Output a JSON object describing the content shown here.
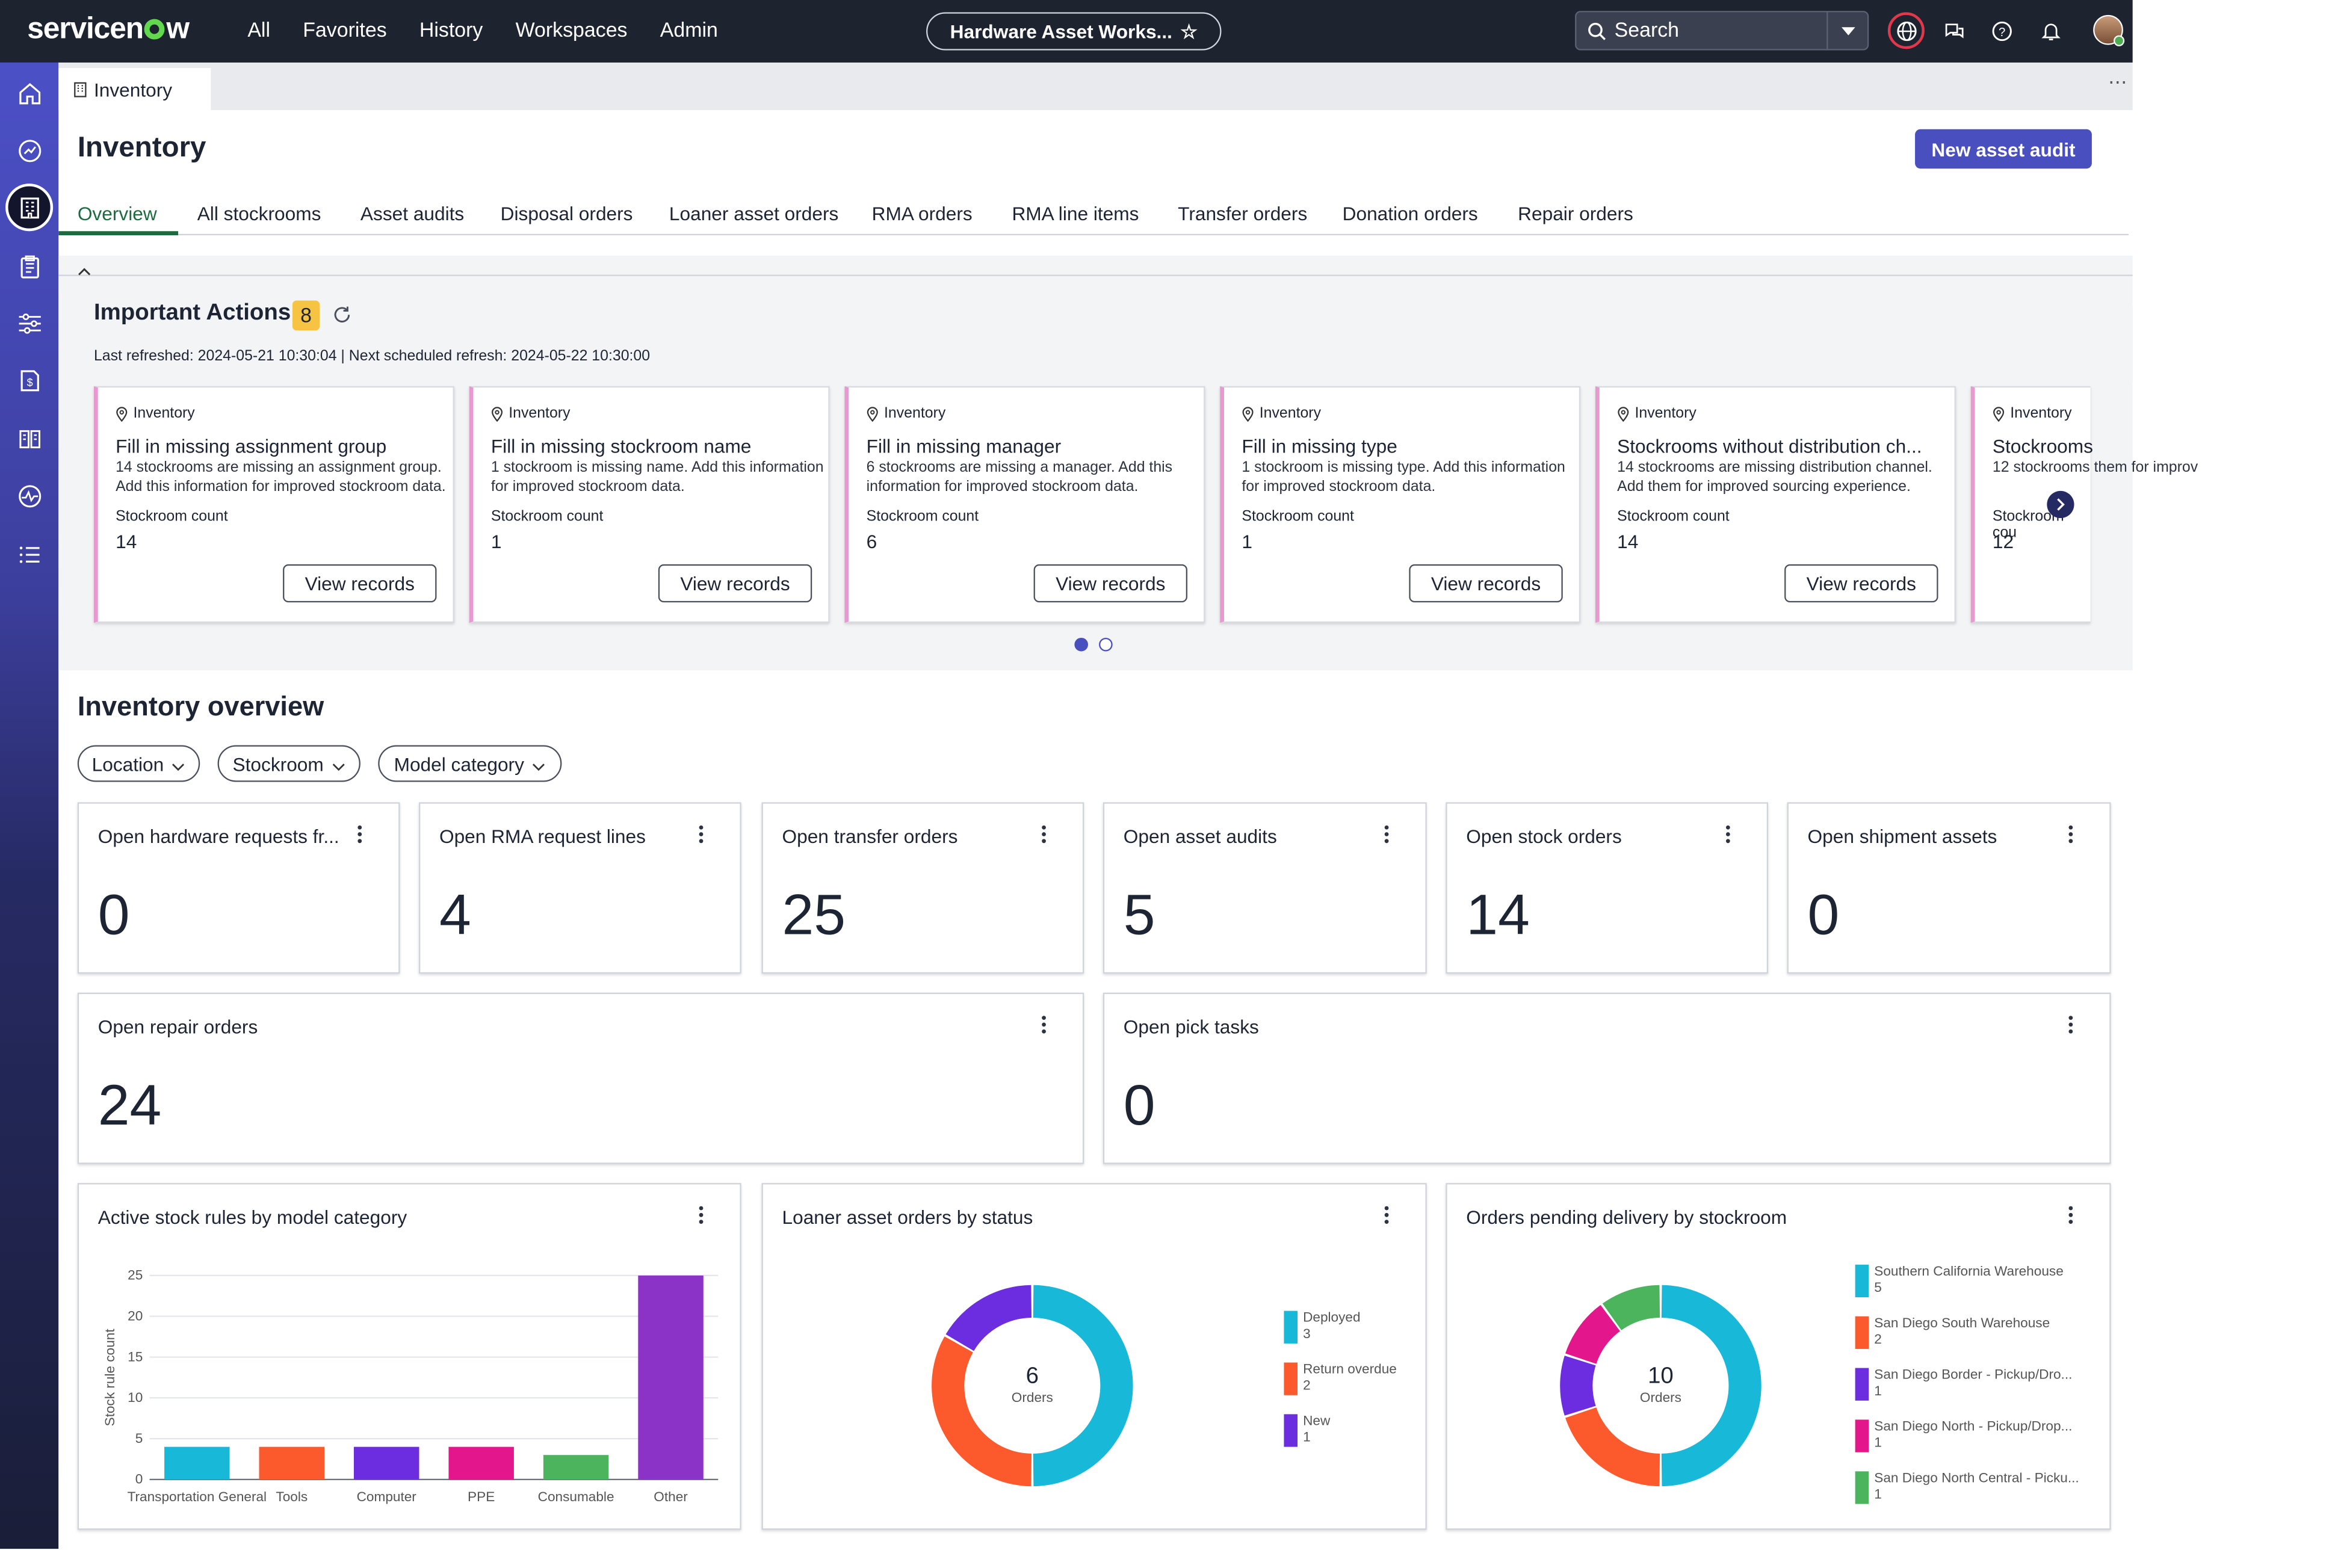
{
  "header": {
    "logo": "servicenow",
    "nav": [
      "All",
      "Favorites",
      "History",
      "Workspaces",
      "Admin"
    ],
    "workspace_pill": "Hardware Asset Works...",
    "search_placeholder": "Search"
  },
  "tab": {
    "label": "Inventory"
  },
  "page": {
    "title": "Inventory",
    "primary_button": "New asset audit"
  },
  "subnav": [
    "Overview",
    "All stockrooms",
    "Asset audits",
    "Disposal orders",
    "Loaner asset orders",
    "RMA orders",
    "RMA line items",
    "Transfer orders",
    "Donation orders",
    "Repair orders"
  ],
  "important_actions": {
    "title": "Important Actions",
    "count": "8",
    "meta": "Last refreshed: 2024-05-21 10:30:04 | Next scheduled refresh: 2024-05-22 10:30:00",
    "cards": [
      {
        "source": "Inventory",
        "title": "Fill in missing assignment group",
        "desc": "14 stockrooms are missing an assignment group. Add this information for improved stockroom data.",
        "count_label": "Stockroom count",
        "count": "14",
        "button": "View records"
      },
      {
        "source": "Inventory",
        "title": "Fill in missing stockroom name",
        "desc": "1 stockroom is missing name. Add this information for improved stockroom data.",
        "count_label": "Stockroom count",
        "count": "1",
        "button": "View records"
      },
      {
        "source": "Inventory",
        "title": "Fill in missing manager",
        "desc": "6 stockrooms are missing a manager. Add this information for improved stockroom data.",
        "count_label": "Stockroom count",
        "count": "6",
        "button": "View records"
      },
      {
        "source": "Inventory",
        "title": "Fill in missing type",
        "desc": "1 stockroom is missing type. Add this information for improved stockroom data.",
        "count_label": "Stockroom count",
        "count": "1",
        "button": "View records"
      },
      {
        "source": "Inventory",
        "title": "Stockrooms without distribution ch...",
        "desc": "14 stockrooms are missing distribution channel. Add them for improved sourcing experience.",
        "count_label": "Stockroom count",
        "count": "14",
        "button": "View records"
      },
      {
        "source": "Inventory",
        "title": "Stockrooms",
        "desc": "12 stockrooms them for improv",
        "count_label": "Stockroom cou",
        "count": "12",
        "button": ""
      }
    ]
  },
  "overview": {
    "title": "Inventory overview",
    "filters": [
      "Location",
      "Stockroom",
      "Model category"
    ],
    "tiles": [
      {
        "label": "Open hardware requests fr...",
        "value": "0"
      },
      {
        "label": "Open RMA request lines",
        "value": "4"
      },
      {
        "label": "Open transfer orders",
        "value": "25"
      },
      {
        "label": "Open asset audits",
        "value": "5"
      },
      {
        "label": "Open stock orders",
        "value": "14"
      },
      {
        "label": "Open shipment assets",
        "value": "0"
      },
      {
        "label": "Open repair orders",
        "value": "24"
      },
      {
        "label": "Open pick tasks",
        "value": "0"
      }
    ],
    "charts_titles": [
      "Active stock rules by model category",
      "Loaner asset orders by status",
      "Orders pending delivery by stockroom"
    ]
  },
  "chart_data": [
    {
      "type": "bar",
      "title": "Active stock rules by model category",
      "ylabel": "Stock rule count",
      "ylim": [
        0,
        25
      ],
      "yticks": [
        0,
        5,
        10,
        15,
        20,
        25
      ],
      "categories": [
        "Transportation General",
        "Tools",
        "Computer",
        "PPE",
        "Consumable",
        "Other"
      ],
      "values": [
        4,
        4,
        4,
        4,
        3,
        25
      ],
      "colors": [
        "#17b8d8",
        "#fc5a2d",
        "#6c2de0",
        "#e3178b",
        "#4bb45c",
        "#8c33c7"
      ]
    },
    {
      "type": "pie",
      "title": "Loaner asset orders by status",
      "center_value": "6",
      "center_label": "Orders",
      "labels": [
        "Deployed",
        "Return overdue",
        "New"
      ],
      "values": [
        3,
        2,
        1
      ],
      "colors": [
        "#17b8d8",
        "#fc5a2d",
        "#6c2de0"
      ]
    },
    {
      "type": "pie",
      "title": "Orders pending delivery by stockroom",
      "center_value": "10",
      "center_label": "Orders",
      "labels": [
        "Southern California Warehouse",
        "San Diego South Warehouse",
        "San Diego Border - Pickup/Dro...",
        "San Diego North - Pickup/Drop...",
        "San Diego North Central - Picku..."
      ],
      "values": [
        5,
        2,
        1,
        1,
        1
      ],
      "colors": [
        "#17b8d8",
        "#fc5a2d",
        "#6c2de0",
        "#e3178b",
        "#4bb45c"
      ]
    }
  ]
}
